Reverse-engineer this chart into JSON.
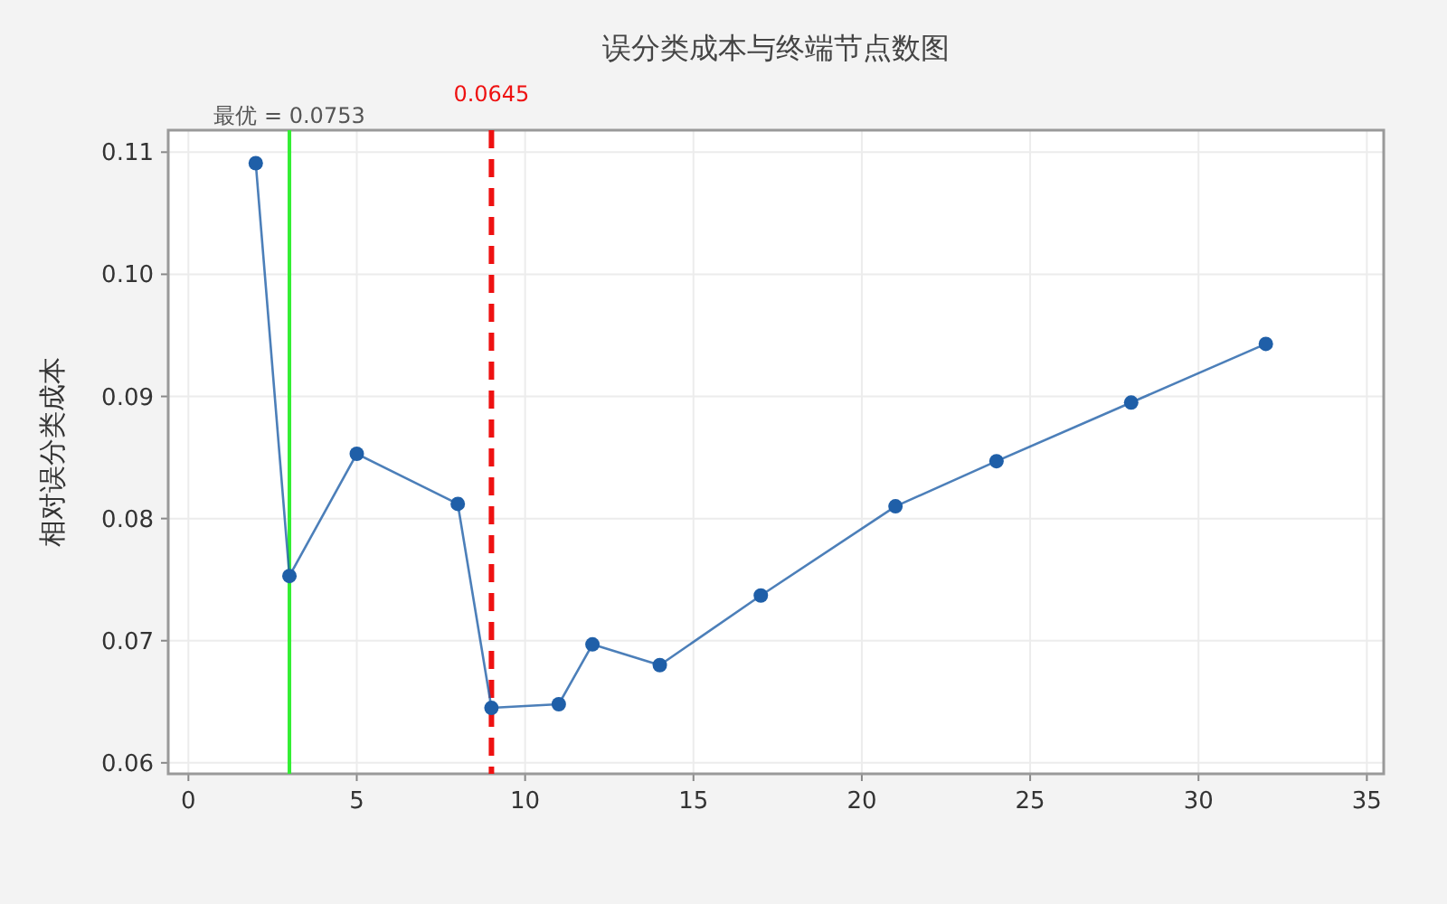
{
  "chart_data": {
    "type": "line",
    "title": "误分类成本与终端节点数图",
    "ylabel": "相对误分类成本",
    "x": [
      2,
      3,
      5,
      8,
      9,
      11,
      12,
      14,
      17,
      21,
      24,
      28,
      32
    ],
    "series": [
      {
        "color": "#1f5fa8",
        "values": [
          0.1091,
          0.0753,
          0.0853,
          0.0812,
          0.0645,
          0.0648,
          0.0697,
          0.068,
          0.0737,
          0.081,
          0.0847,
          0.0895,
          0.0943
        ]
      }
    ],
    "xlim": [
      -0.6,
      35.5
    ],
    "xticks": [
      0,
      5,
      10,
      15,
      20,
      25,
      30,
      35
    ],
    "ylim": [
      0.0591,
      0.1118
    ],
    "yticks": [
      0.06,
      0.07,
      0.08,
      0.09,
      {
        "value": 0.1,
        "label": "0.10"
      },
      0.11
    ],
    "ref_lines": [
      {
        "axis": "x",
        "value": 3,
        "color": "#33ee33",
        "line_style": "solid"
      },
      {
        "axis": "x",
        "value": 9,
        "color": "#ee1111",
        "line_style": "dashed"
      }
    ],
    "annotations": [
      "最优 = 0.0753",
      "0.0645"
    ],
    "grid": true,
    "marker": "circle",
    "line_style": "solid"
  }
}
